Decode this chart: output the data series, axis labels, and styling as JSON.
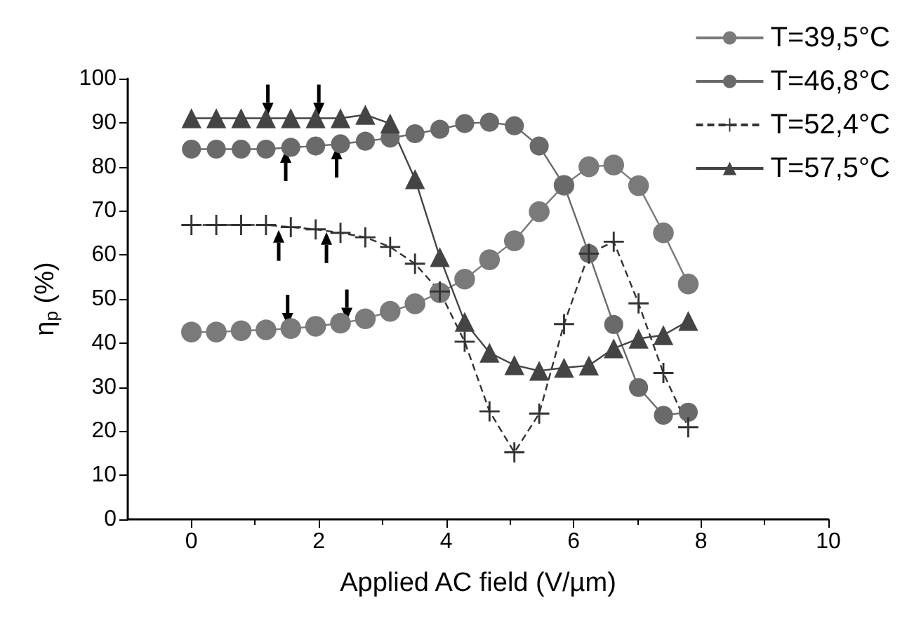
{
  "chart_data": {
    "type": "line",
    "xlabel": "Applied AC field (V/µm)",
    "ylabel": "η$_{p}$ (%)",
    "x": [
      0,
      0.39,
      0.78,
      1.17,
      1.56,
      1.95,
      2.34,
      2.73,
      3.12,
      3.51,
      3.9,
      4.29,
      4.68,
      5.07,
      5.46,
      5.85,
      6.24,
      6.63,
      7.02,
      7.41,
      7.8
    ],
    "series": [
      {
        "name": "T=39,5°C",
        "color": "#7a7a7a",
        "marker": "circle",
        "values": [
          42.5,
          42.5,
          42.8,
          43,
          43.3,
          43.8,
          44.5,
          45.5,
          47.2,
          48.9,
          51.4,
          54.5,
          58.9,
          63.2,
          69.8,
          75.8,
          80,
          80.4,
          75.7,
          65,
          53.4
        ]
      },
      {
        "name": "T=46,8°C",
        "color": "#6a6a6a",
        "marker": "circle",
        "values": [
          84,
          84,
          84,
          84,
          84.4,
          84.7,
          85.2,
          85.8,
          86.5,
          87.5,
          88.5,
          89.8,
          90.1,
          89.3,
          84.7,
          75.8,
          60.3,
          44.2,
          29.9,
          23.6,
          24.3
        ]
      },
      {
        "name": "T=52,4°C",
        "color": "#333333",
        "marker": "cross",
        "line_style": "dashed",
        "values": [
          66.8,
          66.8,
          66.8,
          66.8,
          66.3,
          65.8,
          65,
          64,
          61.8,
          58,
          51.7,
          40.3,
          24.5,
          15.2,
          24,
          44.3,
          60.3,
          63,
          49,
          33.2,
          20.9
        ]
      },
      {
        "name": "T=57,5°C",
        "color": "#444444",
        "marker": "triangle",
        "values": [
          91,
          91,
          91,
          91,
          91,
          91,
          91,
          91.8,
          89.8,
          77.2,
          59.5,
          44.8,
          37.8,
          35,
          33.7,
          34.4,
          34.9,
          38.8,
          41,
          41.8,
          45
        ]
      }
    ],
    "xlim": [
      -1,
      10
    ],
    "xticks": [
      0,
      2,
      4,
      6,
      8,
      10
    ],
    "ylim": [
      0,
      100
    ],
    "yticks": [
      0,
      10,
      20,
      30,
      40,
      50,
      60,
      70,
      80,
      90,
      100
    ],
    "grid": false,
    "legend": "top right"
  }
}
